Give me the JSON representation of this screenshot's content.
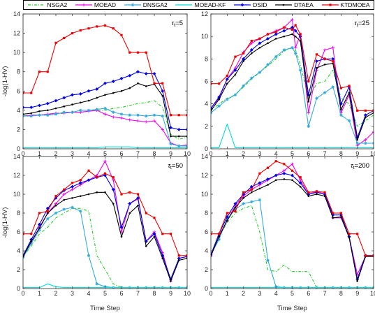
{
  "legend": [
    {
      "name": "NSGA2",
      "color": "#22cc22",
      "style": "dashdot",
      "marker": "none"
    },
    {
      "name": "MOEAD",
      "color": "#ee00ee",
      "style": "solid",
      "marker": "plus"
    },
    {
      "name": "DNSGA2",
      "color": "#33aadd",
      "style": "solid",
      "marker": "star"
    },
    {
      "name": "MOEAD-KF",
      "color": "#00dddd",
      "style": "solid",
      "marker": "none"
    },
    {
      "name": "DSID",
      "color": "#0000ee",
      "style": "solid",
      "marker": "diamond"
    },
    {
      "name": "DTAEA",
      "color": "#000000",
      "style": "solid",
      "marker": "dot"
    },
    {
      "name": "KTDMOEA",
      "color": "#ee0000",
      "style": "solid",
      "marker": "square"
    }
  ],
  "chart_data": [
    {
      "type": "line",
      "annotation": "τt=5",
      "annotation_sub": "t",
      "annotation_val": "=5",
      "ylabel": "-log(1-HV)",
      "xlabel": "",
      "xlim": [
        0,
        10
      ],
      "ylim": [
        0,
        14
      ],
      "xticks": [
        "0",
        "1",
        "2",
        "3",
        "4",
        "5",
        "6",
        "7",
        "8",
        "9",
        "10"
      ],
      "yticks": [
        "0",
        "2",
        "4",
        "6",
        "8",
        "10",
        "12",
        "14"
      ],
      "x": [
        0,
        0.5,
        1,
        1.5,
        2,
        2.5,
        3,
        3.5,
        4,
        4.5,
        5,
        5.5,
        6,
        6.5,
        7,
        7.5,
        8,
        8.5,
        9,
        9.5,
        10
      ],
      "series": [
        {
          "name": "NSGA2",
          "values": [
            3.4,
            3.5,
            3.5,
            3.6,
            3.6,
            3.7,
            3.8,
            3.8,
            3.9,
            4.0,
            4.0,
            4.2,
            4.3,
            4.5,
            4.7,
            4.8,
            5.0,
            4.3,
            1.5,
            1.0,
            1.2
          ]
        },
        {
          "name": "MOEAD",
          "values": [
            3.4,
            3.5,
            3.5,
            3.6,
            3.7,
            3.7,
            3.8,
            3.8,
            3.9,
            4.0,
            3.6,
            3.3,
            3.2,
            3.0,
            2.9,
            2.8,
            2.9,
            2.0,
            0.6,
            0.3,
            0.4
          ]
        },
        {
          "name": "DNSGA2",
          "values": [
            3.4,
            3.4,
            3.5,
            3.5,
            3.6,
            3.8,
            3.8,
            4.0,
            4.0,
            4.1,
            4.2,
            3.8,
            3.6,
            3.5,
            3.5,
            3.4,
            3.5,
            3.4,
            0.5,
            0.3,
            0.3
          ]
        },
        {
          "name": "MOEAD-KF",
          "values": [
            0.1,
            0.1,
            0.1,
            0.1,
            0.1,
            0.1,
            0.1,
            0.1,
            0.1,
            0.1,
            0.2,
            0.2,
            0.2,
            0.2,
            0.1,
            0.1,
            0.1,
            0.1,
            0.1,
            0.1,
            0.1
          ]
        },
        {
          "name": "DSID",
          "values": [
            4.3,
            4.3,
            4.5,
            4.7,
            5.0,
            5.3,
            5.6,
            5.7,
            6.0,
            6.2,
            6.8,
            7.0,
            7.3,
            7.6,
            8.0,
            7.8,
            7.8,
            6.0,
            2.2,
            2.0,
            2.0
          ]
        },
        {
          "name": "DTAEA",
          "values": [
            3.6,
            3.7,
            3.9,
            4.0,
            4.2,
            4.4,
            4.6,
            4.8,
            5.0,
            5.3,
            5.6,
            5.8,
            6.0,
            6.3,
            6.8,
            6.5,
            6.7,
            5.5,
            1.3,
            1.3,
            1.3
          ]
        },
        {
          "name": "KTDMOEA",
          "values": [
            5.8,
            5.8,
            8.0,
            8.0,
            11.0,
            11.5,
            12.0,
            12.3,
            12.5,
            12.7,
            12.8,
            12.5,
            11.8,
            10.0,
            10.0,
            10.0,
            6.8,
            6.8,
            3.5,
            3.5,
            3.5
          ]
        }
      ]
    },
    {
      "type": "line",
      "annotation": "τt=25",
      "annotation_sub": "t",
      "annotation_val": "=25",
      "ylabel": "",
      "xlabel": "",
      "xlim": [
        0,
        10
      ],
      "ylim": [
        0,
        12
      ],
      "xticks": [
        "0",
        "1",
        "2",
        "3",
        "4",
        "5",
        "6",
        "7",
        "8",
        "9",
        "10"
      ],
      "yticks": [
        "0",
        "2",
        "4",
        "6",
        "8",
        "10",
        "12"
      ],
      "x": [
        0,
        0.5,
        1,
        1.5,
        2,
        2.5,
        3,
        3.5,
        4,
        4.5,
        5,
        5.2,
        5.5,
        6,
        6.5,
        7,
        7.5,
        8,
        8.5,
        9,
        9.5,
        10
      ],
      "series": [
        {
          "name": "NSGA2",
          "values": [
            3.4,
            4.0,
            4.5,
            4.8,
            5.5,
            6.2,
            6.8,
            7.4,
            8.0,
            8.7,
            9.0,
            8.8,
            7.5,
            4.5,
            5.8,
            6.0,
            7.0,
            4.5,
            4.0,
            2.0,
            2.5,
            3.0
          ]
        },
        {
          "name": "MOEAD",
          "values": [
            3.6,
            4.5,
            6.2,
            7.2,
            8.6,
            9.4,
            9.8,
            10.2,
            10.5,
            10.8,
            11.5,
            9.0,
            10.2,
            3.2,
            7.0,
            8.8,
            9.0,
            3.2,
            4.8,
            0.3,
            0.8,
            1.5
          ]
        },
        {
          "name": "DNSGA2",
          "values": [
            3.2,
            3.8,
            4.4,
            4.8,
            5.6,
            6.3,
            6.8,
            7.5,
            8.2,
            8.8,
            9.0,
            8.5,
            7.0,
            2.0,
            4.5,
            5.0,
            5.5,
            3.0,
            2.5,
            0.5,
            0.5,
            0.5
          ]
        },
        {
          "name": "MOEAD-KF",
          "values": [
            0.1,
            0.1,
            2.2,
            0.1,
            0.1,
            0.1,
            0.1,
            0.1,
            0.1,
            0.1,
            0.1,
            0.1,
            0.1,
            0.1,
            0.1,
            0.1,
            0.1,
            0.1,
            0.1,
            0.1,
            0.1,
            0.1
          ]
        },
        {
          "name": "DSID",
          "values": [
            3.6,
            4.6,
            6.2,
            7.0,
            8.0,
            8.8,
            9.4,
            9.8,
            10.2,
            10.5,
            10.8,
            10.5,
            10.0,
            4.8,
            7.8,
            8.0,
            8.0,
            4.0,
            5.5,
            1.0,
            3.0,
            3.4
          ]
        },
        {
          "name": "DTAEA",
          "values": [
            3.4,
            4.4,
            5.8,
            6.6,
            7.8,
            8.5,
            9.0,
            9.4,
            9.8,
            10.0,
            10.2,
            10.0,
            9.6,
            4.2,
            7.2,
            7.5,
            7.6,
            3.5,
            5.0,
            0.8,
            2.8,
            3.2
          ]
        },
        {
          "name": "KTDMOEA",
          "values": [
            5.8,
            5.8,
            6.5,
            8.2,
            8.5,
            9.6,
            9.8,
            10.2,
            10.4,
            10.8,
            10.6,
            11.0,
            10.2,
            6.0,
            8.4,
            8.0,
            7.8,
            5.4,
            5.6,
            3.4,
            3.4,
            3.4
          ]
        }
      ]
    },
    {
      "type": "line",
      "annotation": "τt=50",
      "annotation_sub": "t",
      "annotation_val": "=50",
      "ylabel": "-log(1-HV)",
      "xlabel": "Time Step",
      "xlim": [
        0,
        10
      ],
      "ylim": [
        0,
        14
      ],
      "xticks": [
        "0",
        "1",
        "2",
        "3",
        "4",
        "5",
        "6",
        "7",
        "8",
        "9",
        "10"
      ],
      "yticks": [
        "0",
        "2",
        "4",
        "6",
        "8",
        "10",
        "12",
        "14"
      ],
      "x": [
        0,
        0.5,
        1,
        1.5,
        2,
        2.5,
        3,
        3.5,
        4,
        4.5,
        5,
        5.5,
        6,
        6.5,
        7,
        7.5,
        8,
        8.5,
        9,
        9.5,
        10
      ],
      "series": [
        {
          "name": "NSGA2",
          "values": [
            3.4,
            4.5,
            5.8,
            6.5,
            7.5,
            8.0,
            8.5,
            8.5,
            8.2,
            3.5,
            2.0,
            0.5,
            0.1,
            0.1,
            0.1,
            0.1,
            0.1,
            0.1,
            0.1,
            0.1,
            0.1
          ]
        },
        {
          "name": "MOEAD",
          "values": [
            3.4,
            4.8,
            6.5,
            8.0,
            9.0,
            10.0,
            10.5,
            11.0,
            11.5,
            12.0,
            13.5,
            11.5,
            6.0,
            9.0,
            9.5,
            5.0,
            6.0,
            3.8,
            0.8,
            3.2,
            3.4
          ]
        },
        {
          "name": "DNSGA2",
          "values": [
            3.3,
            4.8,
            6.2,
            7.4,
            8.0,
            8.4,
            8.6,
            8.2,
            3.5,
            0.5,
            0.2,
            0.1,
            0.1,
            0.1,
            0.1,
            0.1,
            0.1,
            0.1,
            0.1,
            0.1,
            0.1
          ]
        },
        {
          "name": "MOEAD-KF",
          "values": [
            0.1,
            0.1,
            0.1,
            0.5,
            0.2,
            0.1,
            0.1,
            0.1,
            0.1,
            0.1,
            0.1,
            0.1,
            0.1,
            0.1,
            0.1,
            0.1,
            0.1,
            0.1,
            0.1,
            0.1,
            0.1
          ]
        },
        {
          "name": "DSID",
          "values": [
            3.5,
            5.2,
            6.8,
            8.5,
            9.6,
            10.4,
            10.8,
            11.2,
            11.5,
            11.8,
            12.0,
            10.5,
            6.5,
            9.0,
            9.6,
            5.0,
            5.8,
            3.5,
            1.0,
            3.2,
            3.4
          ]
        },
        {
          "name": "DTAEA",
          "values": [
            3.4,
            5.0,
            6.4,
            8.0,
            8.8,
            9.4,
            9.6,
            9.8,
            10.0,
            10.2,
            10.2,
            9.0,
            5.5,
            8.0,
            8.8,
            4.5,
            5.5,
            3.2,
            0.8,
            3.0,
            3.2
          ]
        },
        {
          "name": "KTDMOEA",
          "values": [
            5.8,
            5.8,
            8.0,
            8.2,
            9.8,
            10.5,
            11.2,
            11.5,
            12.5,
            11.8,
            12.2,
            11.8,
            10.0,
            10.2,
            10.0,
            8.0,
            7.5,
            5.8,
            5.8,
            3.5,
            3.5
          ]
        }
      ]
    },
    {
      "type": "line",
      "annotation": "τt=200",
      "annotation_sub": "t",
      "annotation_val": "=200",
      "ylabel": "",
      "xlabel": "Time Step",
      "xlim": [
        0,
        10
      ],
      "ylim": [
        0,
        14
      ],
      "xticks": [
        "0",
        "1",
        "2",
        "3",
        "4",
        "5",
        "6",
        "7",
        "8",
        "9",
        "10"
      ],
      "yticks": [
        "0",
        "2",
        "4",
        "6",
        "8",
        "10",
        "12",
        "14"
      ],
      "x": [
        0,
        0.5,
        1,
        1.5,
        2,
        2.5,
        3,
        3.5,
        4,
        4.5,
        5,
        5.5,
        6,
        6.5,
        7,
        7.5,
        8,
        8.5,
        9,
        9.5,
        10
      ],
      "series": [
        {
          "name": "NSGA2",
          "values": [
            3.4,
            5.5,
            7.0,
            8.0,
            8.5,
            8.8,
            6.0,
            2.0,
            1.8,
            2.5,
            1.8,
            1.8,
            1.8,
            0.1,
            0.1,
            0.1,
            0.1,
            0.1,
            0.1,
            0.1,
            0.1
          ]
        },
        {
          "name": "MOEAD",
          "values": [
            3.4,
            5.6,
            7.2,
            8.8,
            9.8,
            10.5,
            11.0,
            11.5,
            12.0,
            12.5,
            13.2,
            11.5,
            10.0,
            10.3,
            10.0,
            7.5,
            7.5,
            5.5,
            1.5,
            3.4,
            3.5
          ]
        },
        {
          "name": "DNSGA2",
          "values": [
            3.6,
            5.2,
            7.4,
            8.4,
            9.0,
            9.2,
            9.4,
            3.0,
            0.2,
            0.1,
            0.1,
            0.1,
            0.1,
            0.1,
            0.1,
            0.1,
            0.1,
            0.1,
            0.1,
            0.1,
            0.1
          ]
        },
        {
          "name": "MOEAD-KF",
          "values": [
            0.1,
            0.1,
            0.1,
            0.1,
            0.1,
            0.1,
            0.1,
            0.1,
            0.1,
            0.1,
            0.1,
            0.1,
            0.1,
            0.1,
            0.1,
            0.1,
            0.1,
            0.1,
            0.1,
            0.1,
            0.1
          ]
        },
        {
          "name": "DSID",
          "values": [
            3.6,
            5.8,
            7.6,
            9.0,
            10.0,
            10.8,
            11.2,
            11.6,
            12.0,
            12.2,
            12.0,
            11.2,
            10.0,
            10.2,
            10.0,
            7.8,
            7.8,
            5.5,
            1.0,
            3.5,
            3.5
          ]
        },
        {
          "name": "DTAEA",
          "values": [
            3.5,
            5.5,
            7.2,
            8.6,
            9.6,
            10.2,
            10.6,
            11.0,
            11.5,
            11.6,
            11.5,
            10.8,
            9.8,
            10.0,
            9.8,
            7.5,
            7.6,
            5.4,
            0.8,
            3.4,
            3.4
          ]
        },
        {
          "name": "KTDMOEA",
          "values": [
            5.8,
            5.8,
            8.0,
            8.2,
            10.2,
            10.5,
            12.2,
            12.8,
            13.5,
            13.2,
            12.5,
            11.8,
            10.2,
            10.3,
            10.2,
            8.0,
            8.0,
            5.8,
            5.8,
            3.5,
            3.5
          ]
        }
      ]
    }
  ]
}
